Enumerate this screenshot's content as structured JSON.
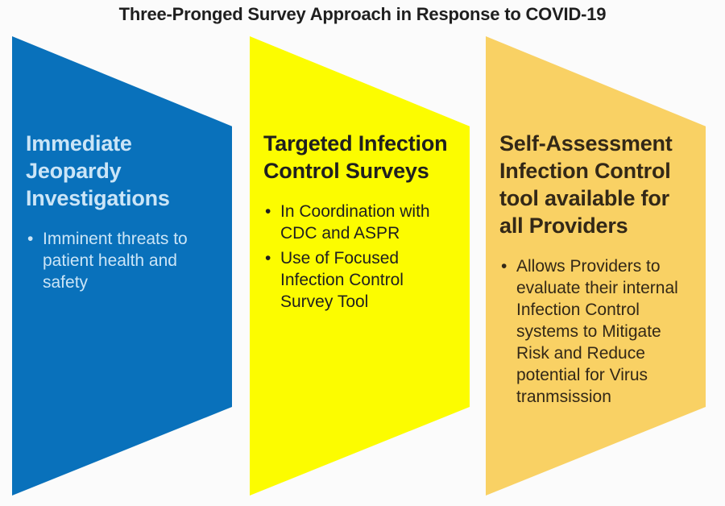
{
  "title": "Three-Pronged Survey Approach in Response to COVID-19",
  "bullet_glyph": "•",
  "colors": {
    "background": "#fbfbfb",
    "title_text": "#1f1f1f",
    "prong1_fill": "#0971bb",
    "prong1_text": "#cbe5f7",
    "prong2_fill": "#fcfc00",
    "prong2_text": "#1f1f1f",
    "prong3_fill": "#f9d164",
    "prong3_text": "#332817"
  },
  "prongs": [
    {
      "id": "immediate-jeopardy-investigations",
      "fill": "#0971bb",
      "text_color": "#cbe5f7",
      "heading_lines": [
        "Immediate",
        "Jeopardy",
        "Investigations"
      ],
      "bullets": [
        {
          "lines": [
            "Imminent threats to",
            "patient health and",
            "safety"
          ]
        }
      ]
    },
    {
      "id": "targeted-infection-control-surveys",
      "fill": "#fcfc00",
      "text_color": "#1f1f1f",
      "heading_lines": [
        "Targeted Infection",
        "Control Surveys"
      ],
      "bullets": [
        {
          "lines": [
            "In Coordination with",
            "CDC and ASPR"
          ]
        },
        {
          "lines": [
            "Use of Focused",
            "Infection Control",
            "Survey Tool"
          ]
        }
      ]
    },
    {
      "id": "self-assessment-infection-control-tool",
      "fill": "#f9d164",
      "text_color": "#332817",
      "heading_lines": [
        "Self-Assessment",
        "Infection Control",
        "tool available for",
        "all Providers"
      ],
      "bullets": [
        {
          "lines": [
            "Allows Providers to",
            "evaluate their internal",
            "Infection Control",
            "systems to Mitigate",
            "Risk and Reduce",
            "potential for Virus",
            "tranmsission"
          ]
        }
      ]
    }
  ]
}
